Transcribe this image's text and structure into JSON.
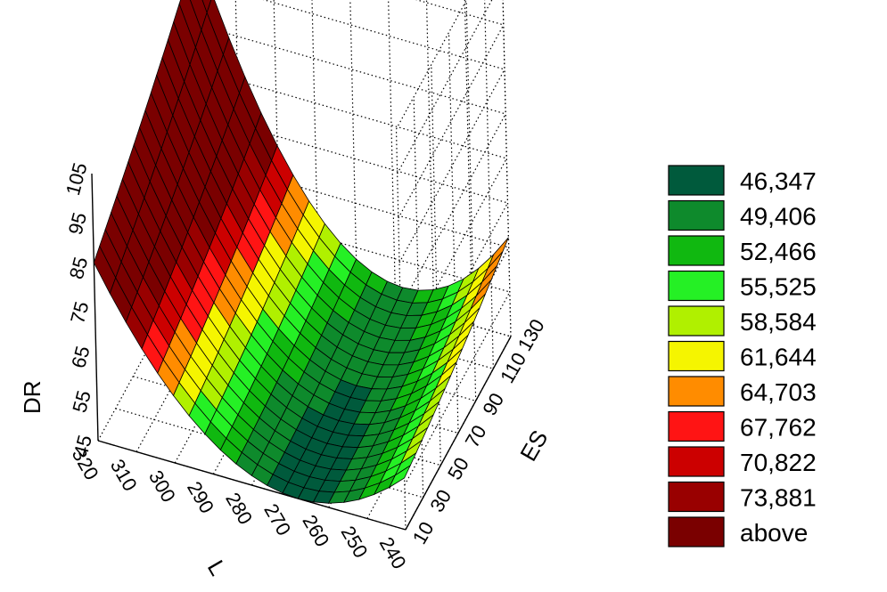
{
  "chart_data": {
    "type": "surface3d",
    "xlabel": "L",
    "ylabel": "ES",
    "zlabel": "DR",
    "x_ticks": [
      "320",
      "310",
      "300",
      "290",
      "280",
      "270",
      "260",
      "250",
      "240"
    ],
    "y_ticks": [
      "10",
      "30",
      "50",
      "70",
      "90",
      "110",
      "130"
    ],
    "z_ticks": [
      "45",
      "55",
      "65",
      "75",
      "85",
      "95",
      "105"
    ],
    "xlim": [
      240,
      320
    ],
    "ylim": [
      10,
      130
    ],
    "zlim": [
      45,
      105
    ],
    "grid": true,
    "legend": {
      "placement": "right",
      "items": [
        {
          "label": "46,347",
          "color": "#005a3c"
        },
        {
          "label": "49,406",
          "color": "#0e8a2c"
        },
        {
          "label": "52,466",
          "color": "#10b810"
        },
        {
          "label": "55,525",
          "color": "#25f025"
        },
        {
          "label": "58,584",
          "color": "#b0f000"
        },
        {
          "label": "61,644",
          "color": "#f5f500"
        },
        {
          "label": "64,703",
          "color": "#ff8c00"
        },
        {
          "label": "67,762",
          "color": "#ff1414"
        },
        {
          "label": "70,822",
          "color": "#cc0000"
        },
        {
          "label": "73,881",
          "color": "#990000"
        },
        {
          "label": "above",
          "color": "#7a0000"
        }
      ]
    },
    "surface_samples": [
      {
        "L": 320,
        "ES": 10,
        "DR": 80
      },
      {
        "L": 320,
        "ES": 130,
        "DR": 103
      },
      {
        "L": 270,
        "ES": 10,
        "DR": 45
      },
      {
        "L": 270,
        "ES": 130,
        "DR": 47
      },
      {
        "L": 240,
        "ES": 10,
        "DR": 58
      },
      {
        "L": 240,
        "ES": 130,
        "DR": 82
      }
    ]
  }
}
